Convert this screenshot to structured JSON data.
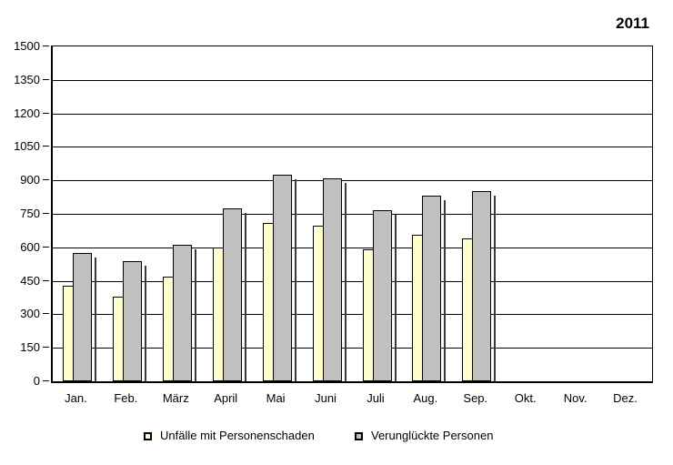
{
  "title": "2011",
  "chart_data": {
    "type": "bar",
    "title": "2011",
    "categories": [
      "Jan.",
      "Feb.",
      "März",
      "April",
      "Mai",
      "Juni",
      "Juli",
      "Aug.",
      "Sep.",
      "Okt.",
      "Nov.",
      "Dez."
    ],
    "series": [
      {
        "name": "Unfälle mit Personenschaden",
        "color": "#FFFFCC",
        "values": [
          430,
          380,
          470,
          600,
          710,
          695,
          590,
          655,
          640,
          null,
          null,
          null
        ]
      },
      {
        "name": "Verunglückte Personen",
        "color": "#C0C0C0",
        "values": [
          575,
          540,
          610,
          775,
          925,
          910,
          765,
          830,
          850,
          null,
          null,
          null
        ]
      }
    ],
    "xlabel": "",
    "ylabel": "",
    "ylim": [
      0,
      1500
    ],
    "ytick_step": 150,
    "grid": "horizontal-only",
    "legend_position": "bottom",
    "bar_border_color": "#000000",
    "shadow_color": "#3a3a3a"
  }
}
